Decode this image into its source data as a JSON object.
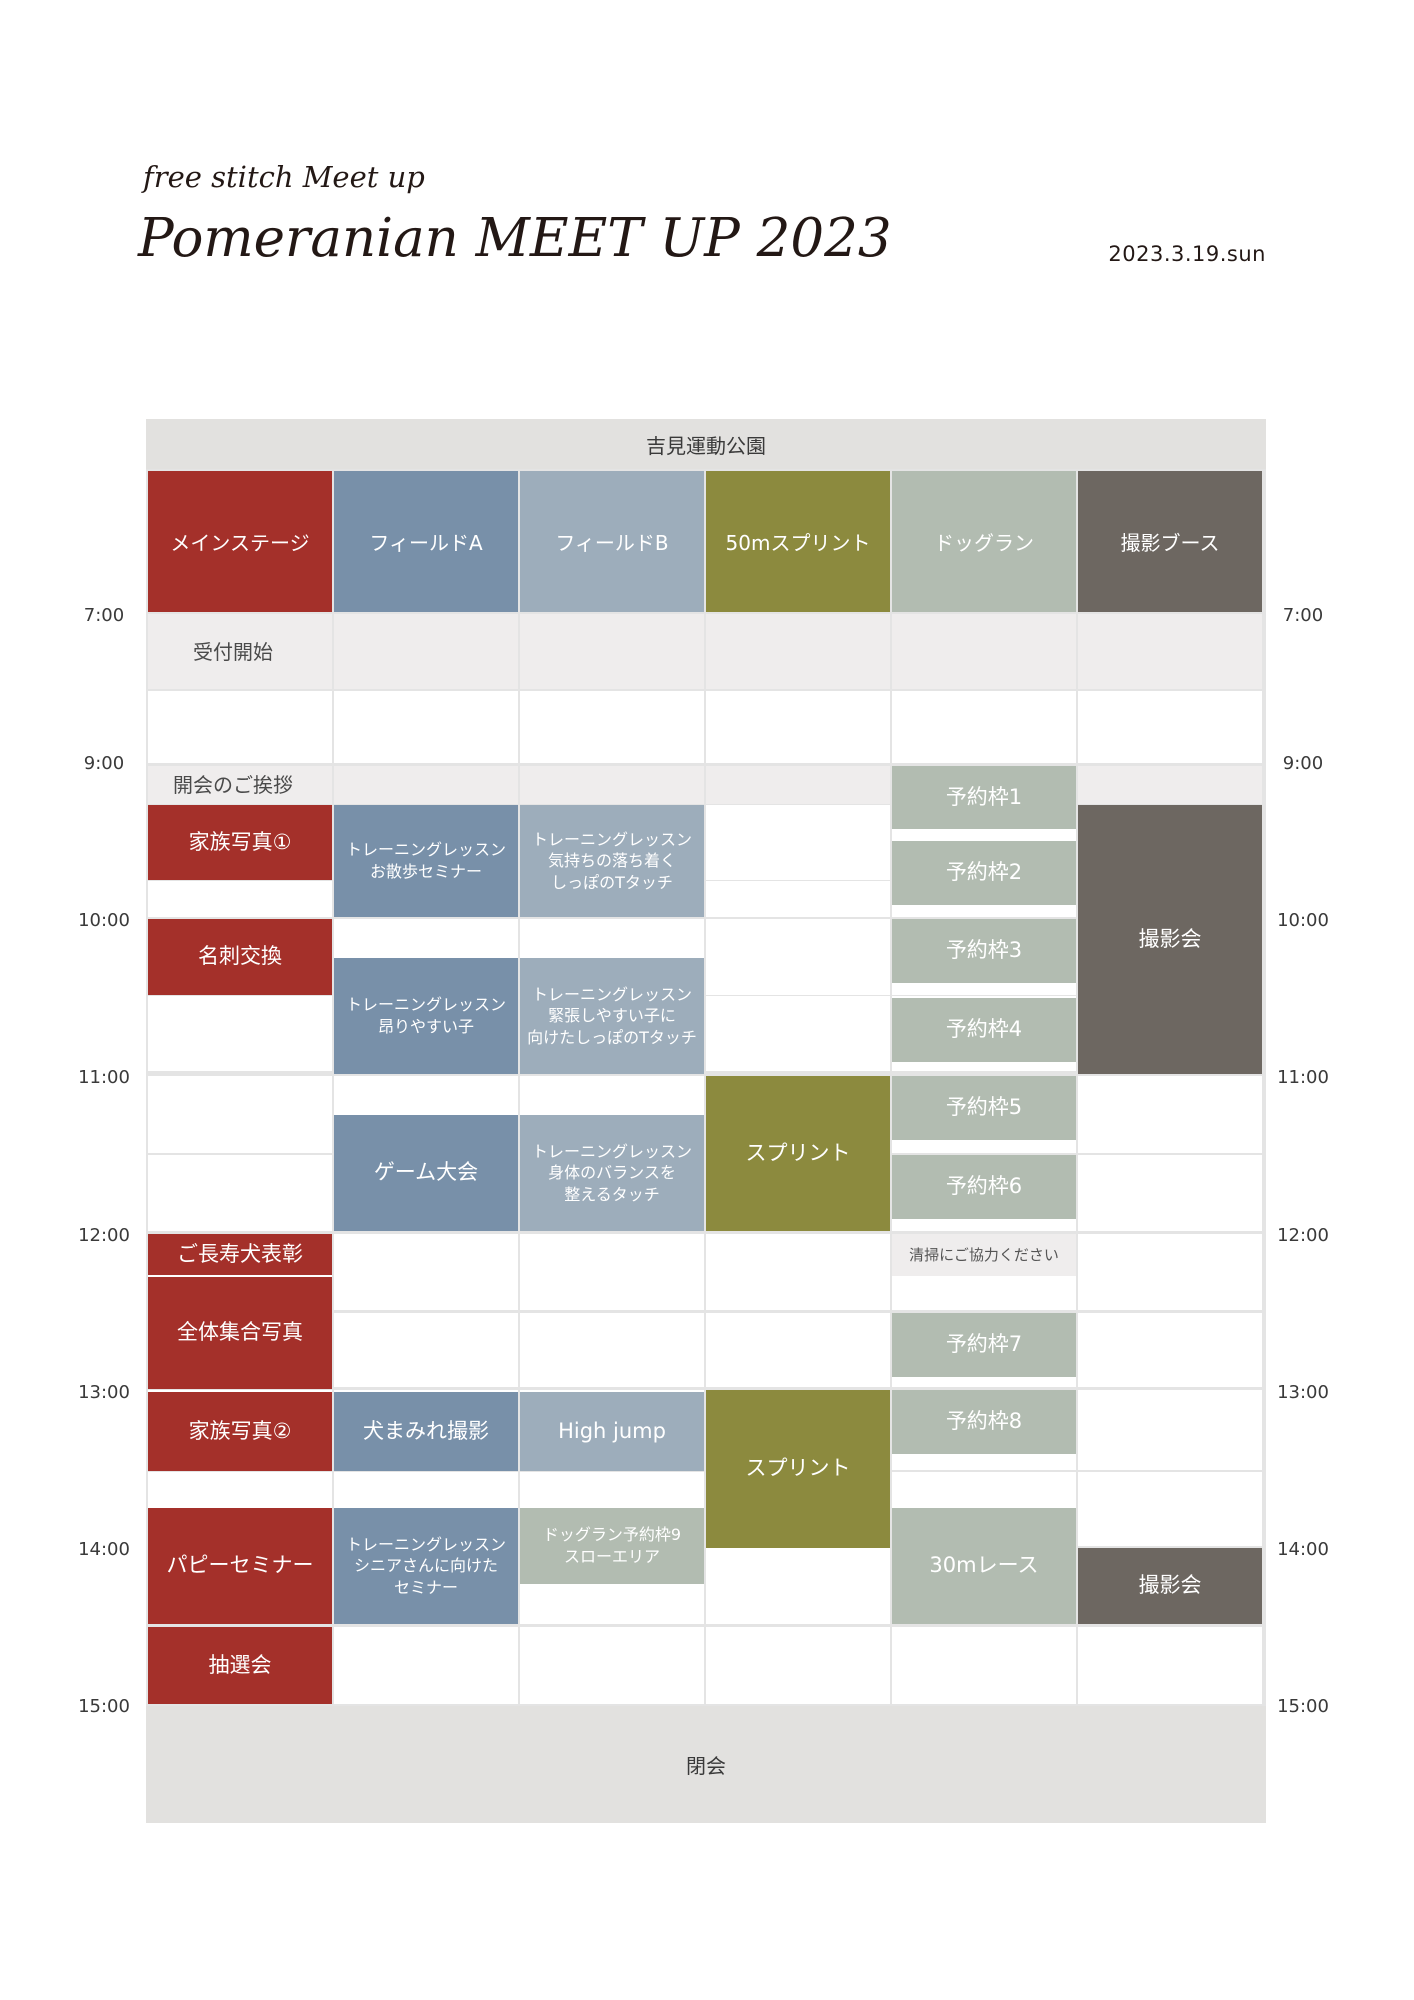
{
  "subtitle": "free stitch Meet up",
  "title": "Pomeranian MEET UP 2023",
  "date": "2023.3.19.sun",
  "venue": "吉見運動公園",
  "closing": "閉会",
  "columns": [
    {
      "label": "メインステージ",
      "color": "#a4302a"
    },
    {
      "label": "フィールドA",
      "color": "#7890a9"
    },
    {
      "label": "フィールドB",
      "color": "#9dadbb"
    },
    {
      "label": "50mスプリント",
      "color": "#8c8a3e"
    },
    {
      "label": "ドッグラン",
      "color": "#b2bcb1"
    },
    {
      "label": "撮影ブース",
      "color": "#6d6761"
    }
  ],
  "times": [
    "7:00",
    "9:00",
    "10:00",
    "11:00",
    "12:00",
    "13:00",
    "14:00",
    "15:00"
  ],
  "events": {
    "main": [
      "受付開始",
      "開会のご挨拶",
      "家族写真①",
      "名刺交換",
      "ご長寿犬表彰",
      "全体集合写真",
      "家族写真②",
      "パピーセミナー",
      "抽選会"
    ],
    "field_a": [
      "トレーニングレッスン\nお散歩セミナー",
      "トレーニングレッスン\n昂りやすい子",
      "ゲーム大会",
      "犬まみれ撮影",
      "トレーニングレッスン\nシニアさんに向けた\nセミナー"
    ],
    "field_b": [
      "トレーニングレッスン\n気持ちの落ち着く\nしっぽのTタッチ",
      "トレーニングレッスン\n緊張しやすい子に\n向けたしっぽのTタッチ",
      "トレーニングレッスン\n身体のバランスを\n整えるタッチ",
      "High jump",
      "ドッグラン予約枠9\nスローエリア"
    ],
    "sprint": [
      "スプリント",
      "スプリント"
    ],
    "dogrun": [
      "予約枠1",
      "予約枠2",
      "予約枠3",
      "予約枠4",
      "予約枠5",
      "予約枠6",
      "清掃にご協力ください",
      "予約枠7",
      "予約枠8",
      "30mレース"
    ],
    "photo": [
      "撮影会",
      "撮影会"
    ]
  }
}
